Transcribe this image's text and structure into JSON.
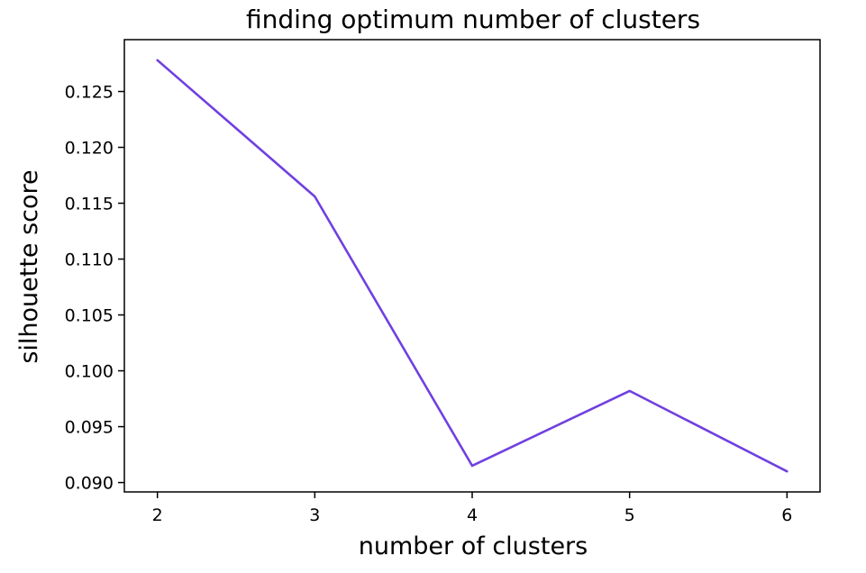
{
  "chart_data": {
    "type": "line",
    "title": "finding optimum number of clusters",
    "xlabel": "number of clusters",
    "ylabel": "silhouette score",
    "x": [
      2,
      3,
      4,
      5,
      6
    ],
    "series": [
      {
        "values": [
          0.1278,
          0.1156,
          0.0915,
          0.0982,
          0.091
        ]
      }
    ],
    "xticks": [
      "2",
      "3",
      "4",
      "5",
      "6"
    ],
    "yticks": [
      "0.090",
      "0.095",
      "0.100",
      "0.105",
      "0.110",
      "0.115",
      "0.120",
      "0.125"
    ],
    "xlim": [
      1.79,
      6.21
    ],
    "ylim": [
      0.08916,
      0.12964
    ],
    "grid": false,
    "line_color": "#7040e0"
  }
}
